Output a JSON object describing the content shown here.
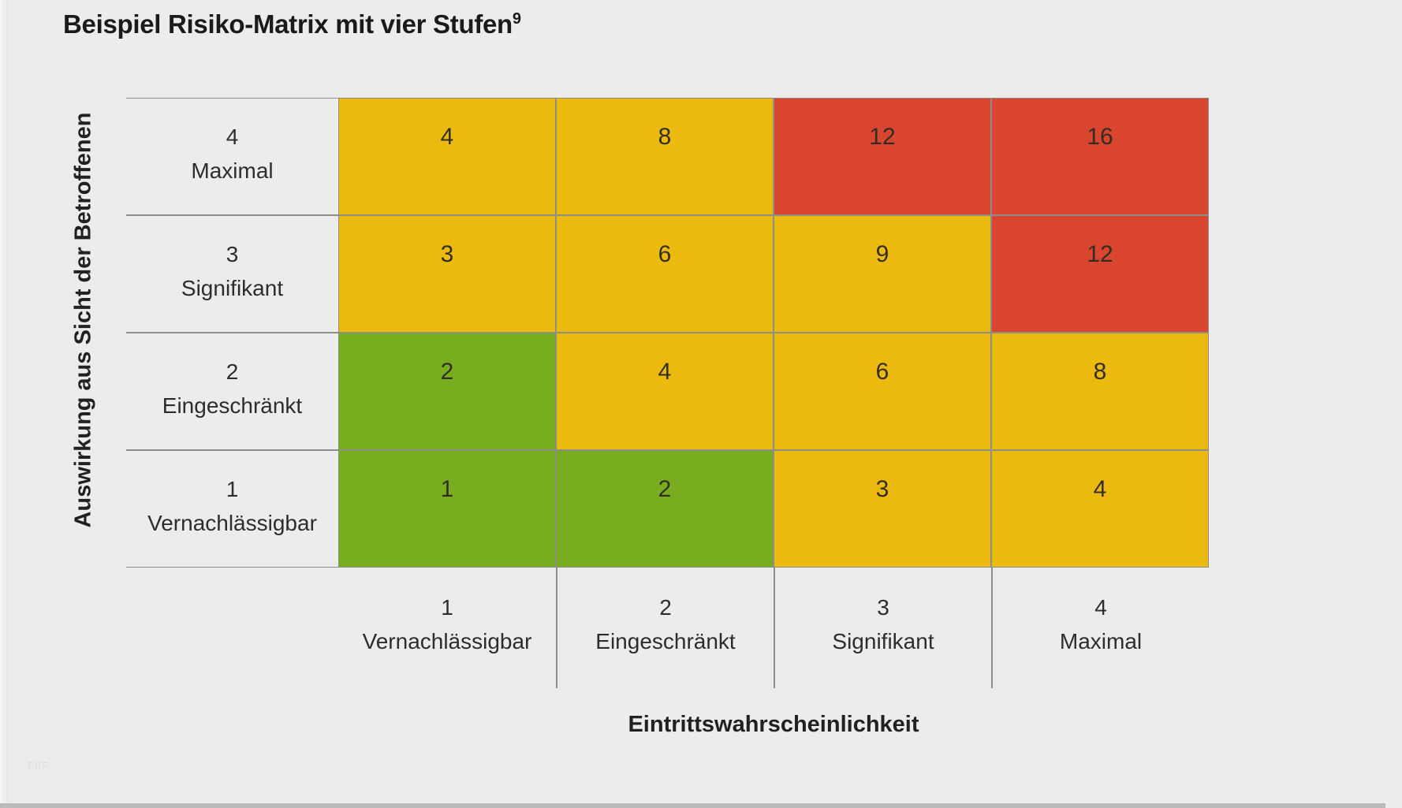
{
  "title": {
    "text": "Beispiel Risiko-Matrix mit vier Stufen",
    "superscript": "9"
  },
  "watermark": "FIfF",
  "colors": {
    "yellow": "#ECBA0E",
    "red": "#D9452F",
    "green": "#77AD1E",
    "background": "#ECECEA",
    "grid_line": "#8D8D89",
    "text": "#2E2D2B",
    "bottom_bar": "#B9BCBA"
  },
  "chart_data": {
    "type": "heatmap",
    "title": "Beispiel Risiko-Matrix mit vier Stufen⁹",
    "xlabel": "Eintrittswahrscheinlichkeit",
    "ylabel": "Auswirkung aus Sicht der Betroffenen",
    "x_categories": [
      {
        "level": "1",
        "label": "Vernachlässigbar"
      },
      {
        "level": "2",
        "label": "Eingeschränkt"
      },
      {
        "level": "3",
        "label": "Signifikant"
      },
      {
        "level": "4",
        "label": "Maximal"
      }
    ],
    "y_categories": [
      {
        "level": "4",
        "label": "Maximal"
      },
      {
        "level": "3",
        "label": "Signifikant"
      },
      {
        "level": "2",
        "label": "Eingeschränkt"
      },
      {
        "level": "1",
        "label": "Vernachlässigbar"
      }
    ],
    "rows": [
      {
        "impact": "4",
        "cells": [
          {
            "value": 4,
            "color": "yellow"
          },
          {
            "value": 8,
            "color": "yellow"
          },
          {
            "value": 12,
            "color": "red"
          },
          {
            "value": 16,
            "color": "red"
          }
        ]
      },
      {
        "impact": "3",
        "cells": [
          {
            "value": 3,
            "color": "yellow"
          },
          {
            "value": 6,
            "color": "yellow"
          },
          {
            "value": 9,
            "color": "yellow"
          },
          {
            "value": 12,
            "color": "red"
          }
        ]
      },
      {
        "impact": "2",
        "cells": [
          {
            "value": 2,
            "color": "green"
          },
          {
            "value": 4,
            "color": "yellow"
          },
          {
            "value": 6,
            "color": "yellow"
          },
          {
            "value": 8,
            "color": "yellow"
          }
        ]
      },
      {
        "impact": "1",
        "cells": [
          {
            "value": 1,
            "color": "green"
          },
          {
            "value": 2,
            "color": "green"
          },
          {
            "value": 3,
            "color": "yellow"
          },
          {
            "value": 4,
            "color": "yellow"
          }
        ]
      }
    ]
  }
}
